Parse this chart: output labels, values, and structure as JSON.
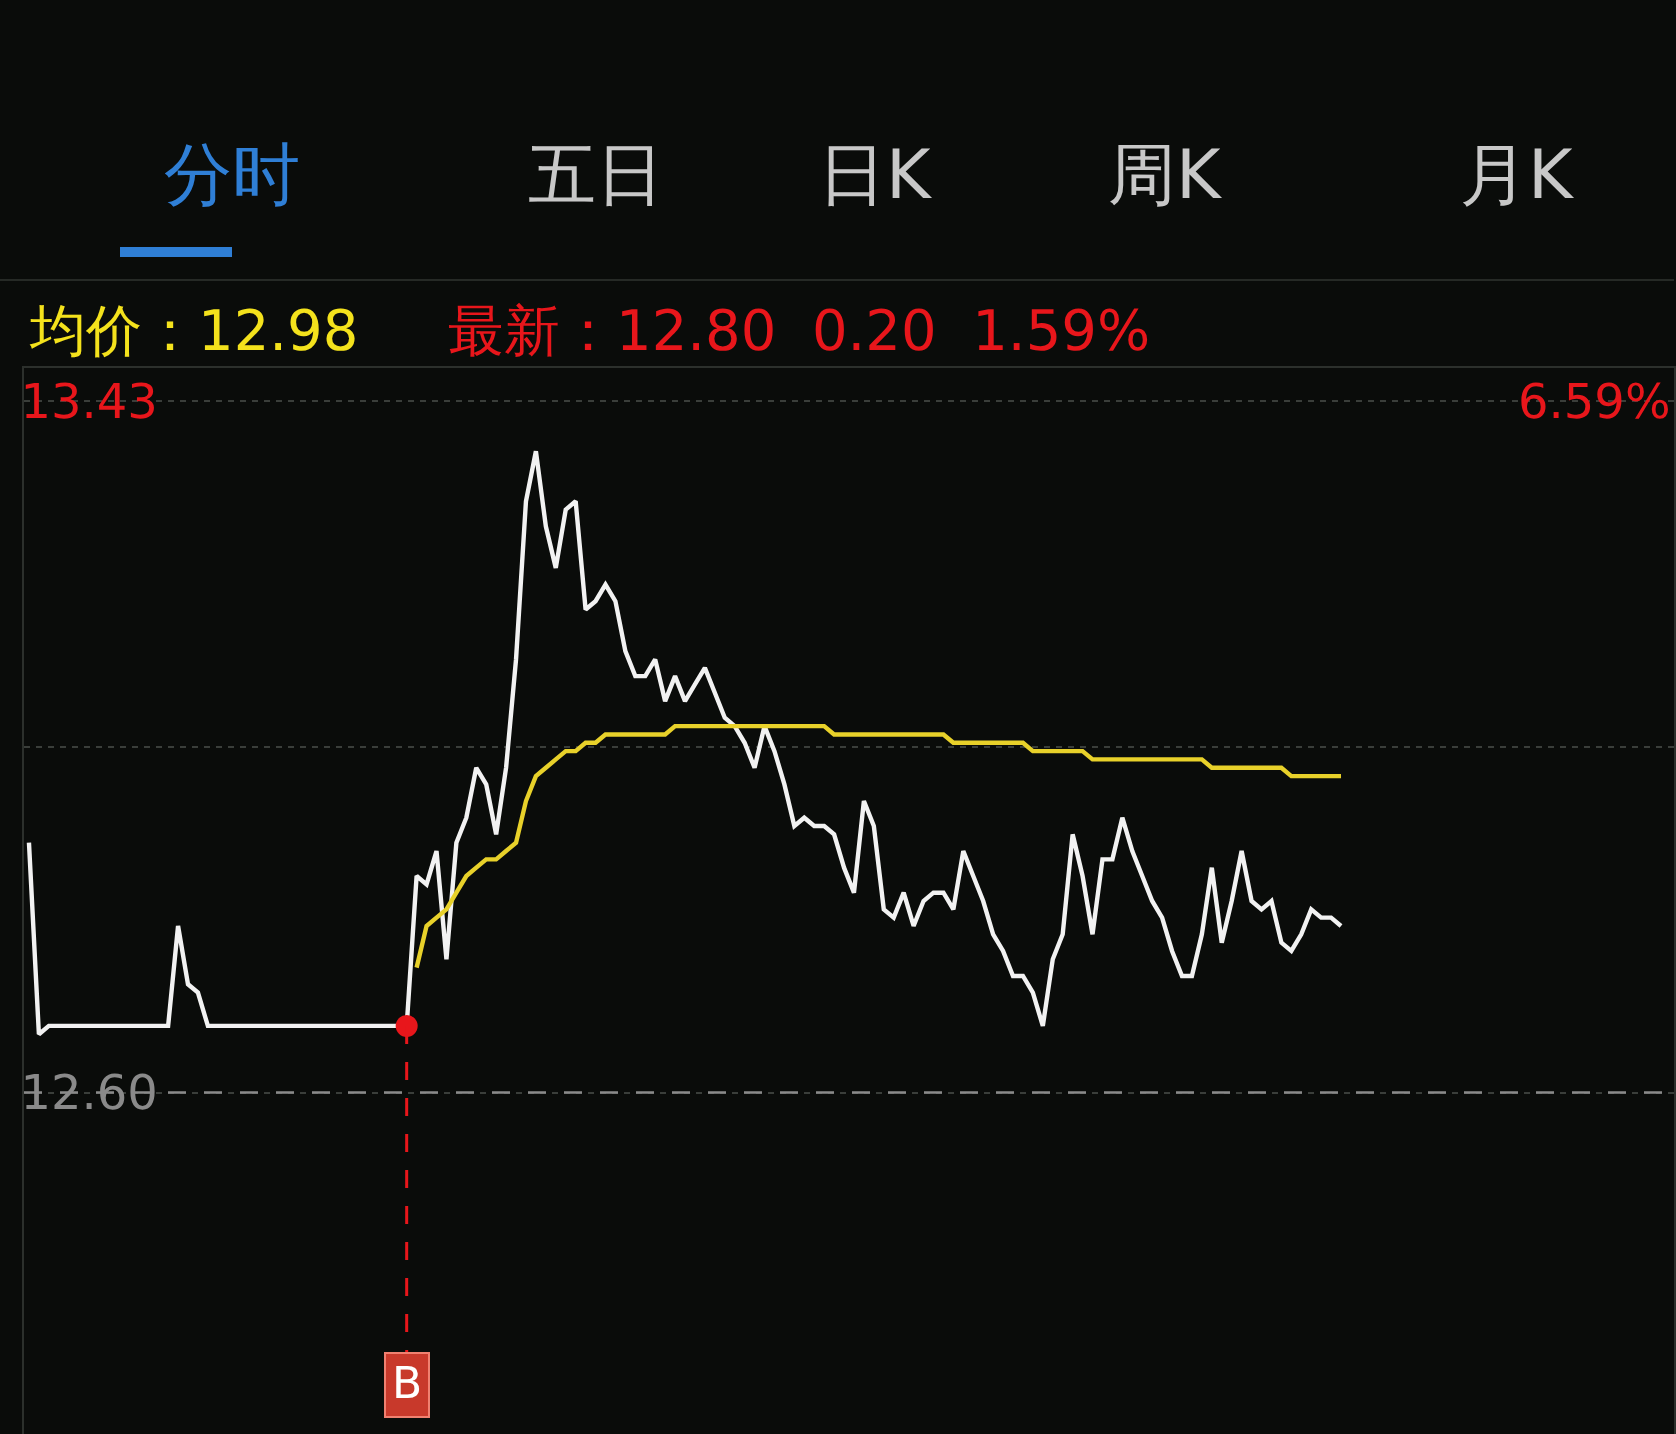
{
  "chart_data": {
    "type": "line",
    "annotations": [
      "分时",
      "五日",
      "日K",
      "周K",
      "月K",
      "均价：12.98",
      "最新：12.80  0.20  1.59%",
      "6.59%",
      "B"
    ],
    "categories": [
      null,
      null,
      null,
      null,
      null,
      null,
      null,
      null,
      null,
      null,
      null,
      null,
      null,
      null,
      null,
      null,
      null,
      null,
      null,
      null,
      null,
      null,
      null,
      null,
      null,
      null,
      null,
      null,
      null,
      null,
      null,
      null,
      null,
      null,
      null,
      null,
      null,
      null,
      null,
      null,
      null,
      null,
      null,
      null,
      null,
      null,
      null,
      null,
      null,
      null,
      null,
      null,
      null,
      null,
      null,
      null,
      null,
      null,
      null,
      null,
      null,
      null,
      null,
      null,
      null,
      null,
      null,
      null,
      null,
      null,
      null,
      null,
      null,
      null,
      null,
      null,
      null,
      null,
      null,
      null,
      null,
      null,
      null,
      null,
      null,
      null,
      null,
      null,
      null,
      null,
      null,
      null,
      null,
      null,
      null,
      null,
      null,
      null,
      null,
      null,
      null,
      null,
      null,
      null,
      null,
      null,
      null,
      null,
      null,
      null,
      null,
      null,
      null,
      null,
      null,
      null,
      null,
      null,
      null,
      null,
      null,
      null,
      null,
      null,
      null,
      null,
      null,
      null,
      null,
      null,
      null,
      null,
      null,
      null,
      null,
      null,
      null,
      null,
      null,
      null,
      null,
      null,
      null,
      null,
      null,
      null,
      null,
      null,
      null,
      null,
      null,
      null,
      null,
      null,
      null,
      null,
      null,
      null,
      null,
      null,
      null,
      null,
      null,
      null,
      null,
      null
    ],
    "series": [
      {
        "color": "#f2f2f2",
        "values": [
          12.9,
          12.67,
          12.68,
          12.68,
          12.68,
          12.68,
          12.68,
          12.68,
          12.68,
          12.68,
          12.68,
          12.68,
          12.68,
          12.68,
          12.68,
          12.8,
          12.73,
          12.72,
          12.68,
          12.68,
          12.68,
          12.68,
          12.68,
          12.68,
          12.68,
          12.68,
          12.68,
          12.68,
          12.68,
          12.68,
          12.68,
          12.68,
          12.68,
          12.68,
          12.68,
          12.68,
          12.68,
          12.68,
          12.68,
          12.86,
          12.85,
          12.89,
          12.76,
          12.9,
          12.93,
          12.99,
          12.97,
          12.91,
          12.99,
          13.12,
          13.31,
          13.37,
          13.28,
          13.23,
          13.3,
          13.31,
          13.18,
          13.19,
          13.21,
          13.19,
          13.13,
          13.1,
          13.1,
          13.12,
          13.07,
          13.1,
          13.07,
          13.09,
          13.11,
          13.08,
          13.05,
          13.04,
          13.02,
          12.99,
          13.04,
          13.01,
          12.97,
          12.92,
          12.93,
          12.92,
          12.92,
          12.91,
          12.87,
          12.84,
          12.95,
          12.92,
          12.82,
          12.81,
          12.84,
          12.8,
          12.83,
          12.84,
          12.84,
          12.82,
          12.89,
          12.86,
          12.83,
          12.79,
          12.77,
          12.74,
          12.74,
          12.72,
          12.68,
          12.76,
          12.79,
          12.91,
          12.86,
          12.79,
          12.88,
          12.88,
          12.93,
          12.89,
          12.86,
          12.83,
          12.81,
          12.77,
          12.74,
          12.74,
          12.79,
          12.87,
          12.78,
          12.83,
          12.89,
          12.83,
          12.82,
          12.83,
          12.78,
          12.77,
          12.79,
          12.82,
          12.81,
          12.81,
          12.8,
          null,
          null,
          null,
          null,
          null,
          null,
          null,
          null,
          null,
          null,
          null,
          null,
          null,
          null,
          null,
          null,
          null,
          null,
          null,
          null,
          null,
          null,
          null,
          null,
          null,
          null,
          null,
          null,
          null,
          null,
          null,
          null,
          null
        ]
      },
      {
        "color": "#e8d12a",
        "values": [
          null,
          null,
          null,
          null,
          null,
          null,
          null,
          null,
          null,
          null,
          null,
          null,
          null,
          null,
          null,
          null,
          null,
          null,
          null,
          null,
          null,
          null,
          null,
          null,
          null,
          null,
          null,
          null,
          null,
          null,
          null,
          null,
          null,
          null,
          null,
          null,
          null,
          null,
          null,
          12.75,
          12.8,
          12.81,
          12.82,
          12.84,
          12.86,
          12.87,
          12.88,
          12.88,
          12.89,
          12.9,
          12.95,
          12.98,
          12.99,
          13.0,
          13.01,
          13.01,
          13.02,
          13.02,
          13.03,
          13.03,
          13.03,
          13.03,
          13.03,
          13.03,
          13.03,
          13.04,
          13.04,
          13.04,
          13.04,
          13.04,
          13.04,
          13.04,
          13.04,
          13.04,
          13.04,
          13.04,
          13.04,
          13.04,
          13.04,
          13.04,
          13.04,
          13.03,
          13.03,
          13.03,
          13.03,
          13.03,
          13.03,
          13.03,
          13.03,
          13.03,
          13.03,
          13.03,
          13.03,
          13.02,
          13.02,
          13.02,
          13.02,
          13.02,
          13.02,
          13.02,
          13.02,
          13.01,
          13.01,
          13.01,
          13.01,
          13.01,
          13.01,
          13.0,
          13.0,
          13.0,
          13.0,
          13.0,
          13.0,
          13.0,
          13.0,
          13.0,
          13.0,
          13.0,
          13.0,
          12.99,
          12.99,
          12.99,
          12.99,
          12.99,
          12.99,
          12.99,
          12.99,
          12.98,
          12.98,
          12.98,
          12.98,
          12.98,
          12.98,
          null,
          null,
          null,
          null,
          null,
          null,
          null,
          null,
          null,
          null,
          null,
          null,
          null,
          null,
          null,
          null,
          null,
          null,
          null,
          null,
          null,
          null,
          null,
          null,
          null,
          null,
          null,
          null,
          null,
          null,
          null,
          null,
          null
        ]
      }
    ],
    "ylim": [
      12.19,
      13.47
    ],
    "yticks": [
      {
        "value": 13.43,
        "label": "13.43"
      },
      {
        "value": 13.015,
        "label": null
      },
      {
        "value": 12.6,
        "label": "12.60"
      }
    ],
    "ref_lines": [
      {
        "axis": "y",
        "value": 12.6,
        "color": "#8a8a8a",
        "line_style": "dashed"
      }
    ],
    "grid": "y",
    "tick_labels": "y",
    "marker": "none",
    "line_style": "solid"
  }
}
